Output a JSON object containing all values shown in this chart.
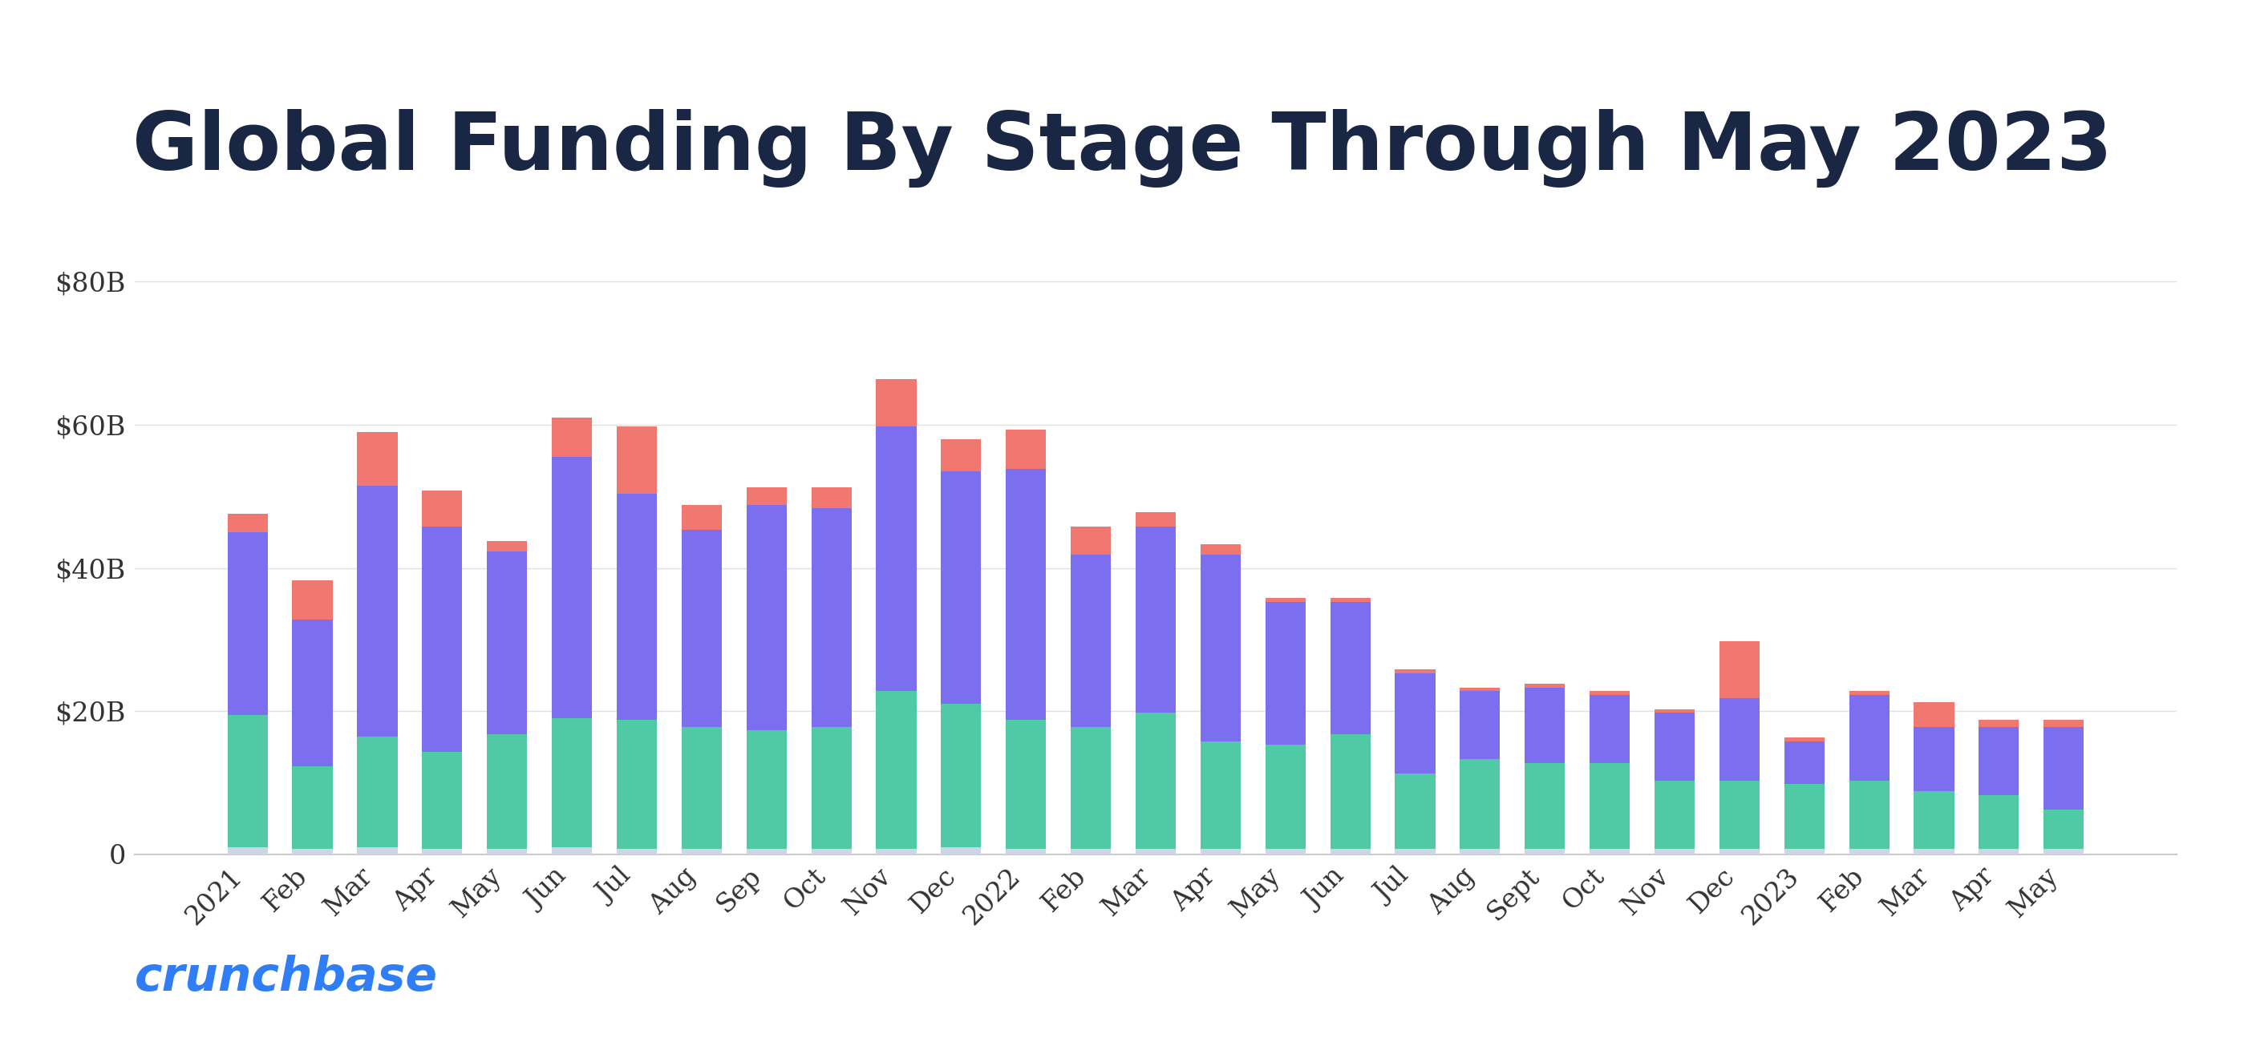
{
  "title": "Global Funding By Stage Through May 2023",
  "categories": [
    "2021",
    "Feb",
    "Mar",
    "Apr",
    "May",
    "Jun",
    "Jul",
    "Aug",
    "Sep",
    "Oct",
    "Nov",
    "Dec",
    "2022",
    "Feb",
    "Mar",
    "Apr",
    "May",
    "Jun",
    "Jul",
    "Aug",
    "Sept",
    "Oct",
    "Nov",
    "Dec",
    "2023",
    "Feb",
    "Mar",
    "Apr",
    "May"
  ],
  "angel_seed": [
    1.0,
    0.8,
    1.0,
    0.8,
    0.8,
    1.0,
    0.8,
    0.8,
    0.8,
    0.8,
    0.8,
    1.0,
    0.8,
    0.8,
    0.8,
    0.8,
    0.8,
    0.8,
    0.8,
    0.8,
    0.8,
    0.8,
    0.8,
    0.8,
    0.8,
    0.8,
    0.8,
    0.8,
    0.8
  ],
  "early_stage": [
    18.5,
    11.5,
    15.5,
    13.5,
    16.0,
    18.0,
    18.0,
    17.0,
    16.5,
    17.0,
    22.0,
    20.0,
    18.0,
    17.0,
    19.0,
    15.0,
    14.5,
    16.0,
    10.5,
    12.5,
    12.0,
    12.0,
    9.5,
    9.5,
    9.0,
    9.5,
    8.0,
    7.5,
    5.5
  ],
  "late_stage": [
    25.5,
    20.5,
    35.0,
    31.5,
    25.5,
    36.5,
    31.5,
    27.5,
    31.5,
    30.5,
    37.0,
    32.5,
    35.0,
    24.0,
    26.0,
    26.0,
    20.0,
    18.5,
    14.0,
    9.5,
    10.5,
    9.5,
    9.5,
    11.5,
    6.0,
    12.0,
    9.0,
    9.5,
    11.5
  ],
  "tech_growth": [
    2.5,
    5.5,
    7.5,
    5.0,
    1.5,
    5.5,
    9.5,
    3.5,
    2.5,
    3.0,
    6.5,
    4.5,
    5.5,
    4.0,
    2.0,
    1.5,
    0.5,
    0.5,
    0.5,
    0.5,
    0.5,
    0.5,
    0.5,
    8.0,
    0.5,
    0.5,
    3.5,
    1.0,
    1.0
  ],
  "colors": {
    "angel_seed": "#cdd5e8",
    "early_stage": "#50c9a5",
    "late_stage": "#7b6fef",
    "tech_growth": "#f07870"
  },
  "ylim": [
    0,
    80
  ],
  "yticks": [
    0,
    20,
    40,
    60,
    80
  ],
  "ytick_labels": [
    "0",
    "$20B",
    "$40B",
    "$60B",
    "$80B"
  ],
  "background_color": "#ffffff",
  "title_color": "#1a2744",
  "title_fontsize": 72,
  "axis_label_fontsize": 26,
  "tick_fontsize": 24,
  "crunchbase_color": "#2f7ef5",
  "legend_fontsize": 26,
  "grid_color": "#e0e0e0",
  "spine_color": "#cccccc"
}
